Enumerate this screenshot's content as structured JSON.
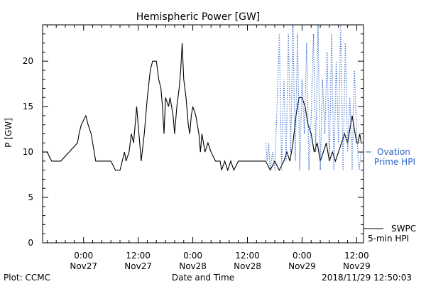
{
  "chart_data": {
    "type": "line",
    "title": "Hemispheric Power [GW]",
    "xlabel": "Date and Time",
    "ylabel": "P [GW]",
    "xlim": [
      "2018-11-26T15:00",
      "2018-11-29T13:30"
    ],
    "ylim": [
      0,
      24
    ],
    "y_ticks": [
      0,
      5,
      10,
      15,
      20
    ],
    "x_ticks": [
      {
        "t": "2018-11-27T00:00",
        "time": "0:00",
        "date": "Nov27"
      },
      {
        "t": "2018-11-27T12:00",
        "time": "12:00",
        "date": "Nov27"
      },
      {
        "t": "2018-11-28T00:00",
        "time": "0:00",
        "date": "Nov28"
      },
      {
        "t": "2018-11-28T12:00",
        "time": "12:00",
        "date": "Nov28"
      },
      {
        "t": "2018-11-29T00:00",
        "time": "0:00",
        "date": "Nov29"
      },
      {
        "t": "2018-11-29T12:00",
        "time": "12:00",
        "date": "Nov29"
      }
    ],
    "series": [
      {
        "name": "SWPC 5-min HPI",
        "label_lines": [
          "SWPC",
          "5-min HPI"
        ],
        "color": "#000000",
        "style": "solid",
        "points": [
          [
            "2018-11-26T15:00",
            10
          ],
          [
            "2018-11-26T16:00",
            10
          ],
          [
            "2018-11-26T17:00",
            9
          ],
          [
            "2018-11-26T19:00",
            9
          ],
          [
            "2018-11-26T22:40",
            11
          ],
          [
            "2018-11-26T23:00",
            12
          ],
          [
            "2018-11-26T23:30",
            13
          ],
          [
            "2018-11-27T00:30",
            14
          ],
          [
            "2018-11-27T01:00",
            13
          ],
          [
            "2018-11-27T01:40",
            12
          ],
          [
            "2018-11-27T02:00",
            11
          ],
          [
            "2018-11-27T02:20",
            10
          ],
          [
            "2018-11-27T02:40",
            9
          ],
          [
            "2018-11-27T06:00",
            9
          ],
          [
            "2018-11-27T07:00",
            8
          ],
          [
            "2018-11-27T08:00",
            8
          ],
          [
            "2018-11-27T08:30",
            9
          ],
          [
            "2018-11-27T09:00",
            10
          ],
          [
            "2018-11-27T09:20",
            9
          ],
          [
            "2018-11-27T10:00",
            10
          ],
          [
            "2018-11-27T10:30",
            12
          ],
          [
            "2018-11-27T11:00",
            11
          ],
          [
            "2018-11-27T11:40",
            15
          ],
          [
            "2018-11-27T12:00",
            13
          ],
          [
            "2018-11-27T12:40",
            9
          ],
          [
            "2018-11-27T13:20",
            12
          ],
          [
            "2018-11-27T14:00",
            16
          ],
          [
            "2018-11-27T14:40",
            19
          ],
          [
            "2018-11-27T15:10",
            20
          ],
          [
            "2018-11-27T16:00",
            20
          ],
          [
            "2018-11-27T16:30",
            18
          ],
          [
            "2018-11-27T17:00",
            17
          ],
          [
            "2018-11-27T17:20",
            15
          ],
          [
            "2018-11-27T17:40",
            12
          ],
          [
            "2018-11-27T18:00",
            16
          ],
          [
            "2018-11-27T18:40",
            15
          ],
          [
            "2018-11-27T19:00",
            16
          ],
          [
            "2018-11-27T19:40",
            14
          ],
          [
            "2018-11-27T20:00",
            12
          ],
          [
            "2018-11-27T20:30",
            15
          ],
          [
            "2018-11-27T21:00",
            17
          ],
          [
            "2018-11-27T21:20",
            19
          ],
          [
            "2018-11-27T21:40",
            22
          ],
          [
            "2018-11-27T22:00",
            18
          ],
          [
            "2018-11-27T22:30",
            16
          ],
          [
            "2018-11-27T23:00",
            13
          ],
          [
            "2018-11-27T23:20",
            12
          ],
          [
            "2018-11-27T23:40",
            14
          ],
          [
            "2018-11-28T00:00",
            15
          ],
          [
            "2018-11-28T00:40",
            14
          ],
          [
            "2018-11-28T01:20",
            12
          ],
          [
            "2018-11-28T01:40",
            10
          ],
          [
            "2018-11-28T02:00",
            12
          ],
          [
            "2018-11-28T02:40",
            10
          ],
          [
            "2018-11-28T03:20",
            11
          ],
          [
            "2018-11-28T04:00",
            10
          ],
          [
            "2018-11-28T05:00",
            9
          ],
          [
            "2018-11-28T06:00",
            9
          ],
          [
            "2018-11-28T06:20",
            8
          ],
          [
            "2018-11-28T07:00",
            9
          ],
          [
            "2018-11-28T07:40",
            8
          ],
          [
            "2018-11-28T08:20",
            9
          ],
          [
            "2018-11-28T09:00",
            8
          ],
          [
            "2018-11-28T10:00",
            9
          ],
          [
            "2018-11-28T13:00",
            9
          ],
          [
            "2018-11-28T16:00",
            9
          ],
          [
            "2018-11-28T17:00",
            8
          ],
          [
            "2018-11-28T18:00",
            9
          ],
          [
            "2018-11-28T19:00",
            8
          ],
          [
            "2018-11-28T20:00",
            9
          ],
          [
            "2018-11-28T20:40",
            10
          ],
          [
            "2018-11-28T21:20",
            9
          ],
          [
            "2018-11-28T21:40",
            10
          ],
          [
            "2018-11-28T22:00",
            11
          ],
          [
            "2018-11-28T22:40",
            14
          ],
          [
            "2018-11-28T23:20",
            16
          ],
          [
            "2018-11-29T00:00",
            16
          ],
          [
            "2018-11-29T00:40",
            15
          ],
          [
            "2018-11-29T01:20",
            13
          ],
          [
            "2018-11-29T02:00",
            12
          ],
          [
            "2018-11-29T02:40",
            10
          ],
          [
            "2018-11-29T03:20",
            11
          ],
          [
            "2018-11-29T04:00",
            9
          ],
          [
            "2018-11-29T04:40",
            10
          ],
          [
            "2018-11-29T05:20",
            11
          ],
          [
            "2018-11-29T06:00",
            9
          ],
          [
            "2018-11-29T06:40",
            10
          ],
          [
            "2018-11-29T07:20",
            9
          ],
          [
            "2018-11-29T08:00",
            10
          ],
          [
            "2018-11-29T08:40",
            11
          ],
          [
            "2018-11-29T09:20",
            12
          ],
          [
            "2018-11-29T10:00",
            11
          ],
          [
            "2018-11-29T10:40",
            13
          ],
          [
            "2018-11-29T11:00",
            14
          ],
          [
            "2018-11-29T11:40",
            12
          ],
          [
            "2018-11-29T12:00",
            11
          ],
          [
            "2018-11-29T12:20",
            11
          ],
          [
            "2018-11-29T12:40",
            12
          ],
          [
            "2018-11-29T13:00",
            11
          ]
        ]
      },
      {
        "name": "Ovation Prime HPI",
        "label_lines": [
          "Ovation",
          "Prime HPI"
        ],
        "color": "#2a62c9",
        "style": "dotted",
        "points": [
          [
            "2018-11-28T16:00",
            11
          ],
          [
            "2018-11-28T16:20",
            9
          ],
          [
            "2018-11-28T16:40",
            11
          ],
          [
            "2018-11-28T17:00",
            8
          ],
          [
            "2018-11-28T17:30",
            10
          ],
          [
            "2018-11-28T18:00",
            8
          ],
          [
            "2018-11-28T18:30",
            15
          ],
          [
            "2018-11-28T19:00",
            23
          ],
          [
            "2018-11-28T19:30",
            8
          ],
          [
            "2018-11-28T20:00",
            18
          ],
          [
            "2018-11-28T20:30",
            9
          ],
          [
            "2018-11-28T21:00",
            23
          ],
          [
            "2018-11-28T21:30",
            10
          ],
          [
            "2018-11-28T22:00",
            24
          ],
          [
            "2018-11-28T22:30",
            9
          ],
          [
            "2018-11-28T23:00",
            23
          ],
          [
            "2018-11-28T23:30",
            8
          ],
          [
            "2018-11-29T00:00",
            18
          ],
          [
            "2018-11-29T00:30",
            12
          ],
          [
            "2018-11-29T01:00",
            22
          ],
          [
            "2018-11-29T01:30",
            8
          ],
          [
            "2018-11-29T02:00",
            14
          ],
          [
            "2018-11-29T02:30",
            23
          ],
          [
            "2018-11-29T03:00",
            10
          ],
          [
            "2018-11-29T03:30",
            24
          ],
          [
            "2018-11-29T04:00",
            8
          ],
          [
            "2018-11-29T04:30",
            18
          ],
          [
            "2018-11-29T05:00",
            12
          ],
          [
            "2018-11-29T05:30",
            21
          ],
          [
            "2018-11-29T06:00",
            9
          ],
          [
            "2018-11-29T06:30",
            23
          ],
          [
            "2018-11-29T07:00",
            8
          ],
          [
            "2018-11-29T07:30",
            20
          ],
          [
            "2018-11-29T08:00",
            11
          ],
          [
            "2018-11-29T08:30",
            24
          ],
          [
            "2018-11-29T09:00",
            8
          ],
          [
            "2018-11-29T09:30",
            22
          ],
          [
            "2018-11-29T10:00",
            10
          ],
          [
            "2018-11-29T10:30",
            16
          ],
          [
            "2018-11-29T11:00",
            8
          ],
          [
            "2018-11-29T11:30",
            19
          ],
          [
            "2018-11-29T12:00",
            12
          ],
          [
            "2018-11-29T12:30",
            8
          ],
          [
            "2018-11-29T13:00",
            10
          ]
        ]
      }
    ],
    "grid": false
  },
  "footer": {
    "left": "Plot: CCMC",
    "center": "Date and Time",
    "right": "2018/11/29 12:50:03"
  }
}
